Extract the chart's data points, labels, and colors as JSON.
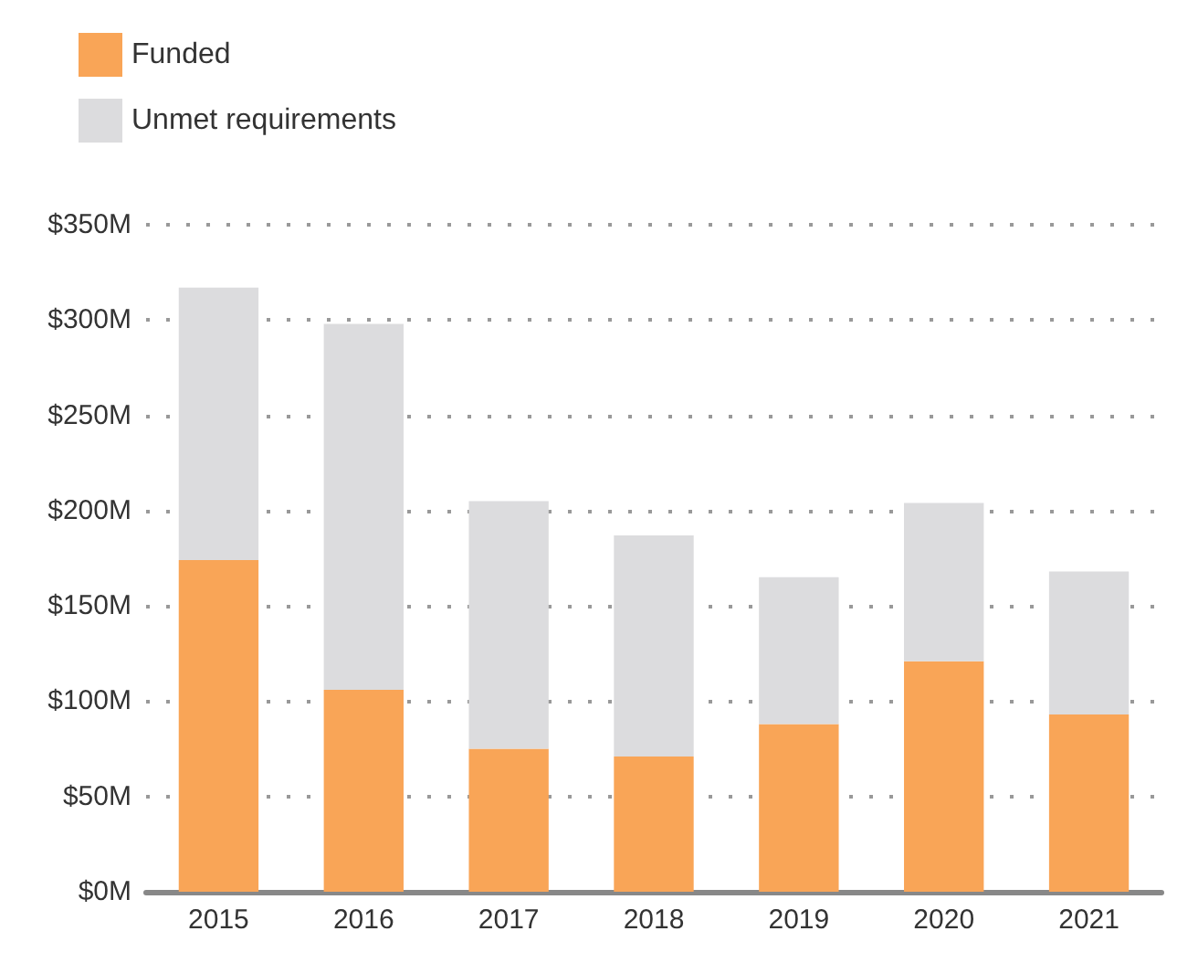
{
  "chart_data": {
    "type": "bar",
    "stacked": true,
    "categories": [
      "2015",
      "2016",
      "2017",
      "2018",
      "2019",
      "2020",
      "2021"
    ],
    "series": [
      {
        "name": "Funded",
        "color": "#f9a557",
        "values": [
          174,
          106,
          75,
          71,
          88,
          121,
          93
        ]
      },
      {
        "name": "Unmet requirements",
        "color": "#dcdcde",
        "values": [
          143,
          192,
          130,
          116,
          77,
          83,
          75
        ]
      }
    ],
    "ylim": [
      0,
      350
    ],
    "yticks": [
      {
        "value": 0,
        "label": "$0M"
      },
      {
        "value": 50,
        "label": "$50M"
      },
      {
        "value": 100,
        "label": "$100M"
      },
      {
        "value": 150,
        "label": "$150M"
      },
      {
        "value": 200,
        "label": "$200M"
      },
      {
        "value": 250,
        "label": "$250M"
      },
      {
        "value": 300,
        "label": "$300M"
      },
      {
        "value": 350,
        "label": "$350M"
      }
    ],
    "grid": "y",
    "legend": "top left"
  }
}
